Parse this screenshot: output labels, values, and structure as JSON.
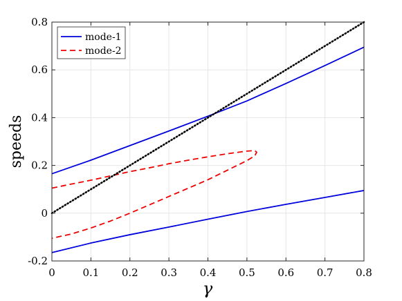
{
  "chart_data": {
    "type": "line",
    "xlabel": "γ",
    "ylabel": "speeds",
    "xlim": [
      0,
      0.8
    ],
    "ylim": [
      -0.2,
      0.8
    ],
    "xticks": [
      "0",
      "0.1",
      "0.2",
      "0.3",
      "0.4",
      "0.5",
      "0.6",
      "0.7",
      "0.8"
    ],
    "yticks": [
      "-0.2",
      "0",
      "0.2",
      "0.4",
      "0.6",
      "0.8"
    ],
    "grid": true,
    "legend_position": "top-left",
    "legend": [
      {
        "label": "mode-1",
        "color": "#0000dd",
        "style": "solid"
      },
      {
        "label": "mode-2",
        "color": "#ee0000",
        "style": "dashed"
      }
    ],
    "series": [
      {
        "legend": "mode-1",
        "color": "#0000dd",
        "style": "solid",
        "x": [
          0,
          0.1,
          0.2,
          0.3,
          0.4,
          0.5,
          0.6,
          0.7,
          0.8
        ],
        "y": [
          0.165,
          0.222,
          0.283,
          0.344,
          0.406,
          0.47,
          0.543,
          0.618,
          0.695
        ]
      },
      {
        "legend": "mode-1",
        "color": "#0000dd",
        "style": "solid",
        "x": [
          0,
          0.1,
          0.2,
          0.3,
          0.4,
          0.5,
          0.6,
          0.7,
          0.8
        ],
        "y": [
          -0.165,
          -0.125,
          -0.09,
          -0.058,
          -0.025,
          0.007,
          0.037,
          0.066,
          0.095
        ]
      },
      {
        "legend": "mode-2",
        "color": "#ee0000",
        "style": "dashed",
        "x": [
          0,
          0.05,
          0.1,
          0.15,
          0.2,
          0.25,
          0.3,
          0.35,
          0.4,
          0.45,
          0.5,
          0.52,
          0.525,
          0.52,
          0.5,
          0.45,
          0.4,
          0.35,
          0.3,
          0.25,
          0.2,
          0.15,
          0.1,
          0.05,
          0
        ],
        "y": [
          0.105,
          0.122,
          0.138,
          0.156,
          0.174,
          0.19,
          0.207,
          0.222,
          0.236,
          0.249,
          0.26,
          0.262,
          0.255,
          0.24,
          0.22,
          0.18,
          0.14,
          0.105,
          0.07,
          0.035,
          0.0,
          -0.033,
          -0.062,
          -0.087,
          -0.105
        ]
      },
      {
        "color": "#000000",
        "style": "dotted",
        "x": [
          0,
          0.8
        ],
        "y": [
          0,
          0.8
        ]
      }
    ]
  }
}
